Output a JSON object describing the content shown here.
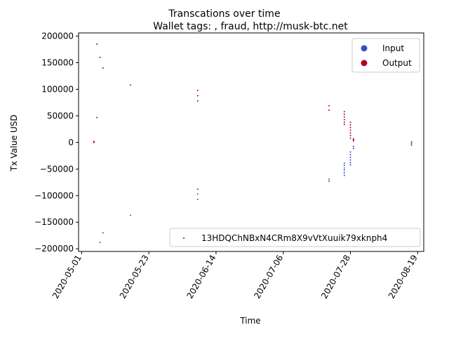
{
  "chart_data": {
    "type": "scatter",
    "title": "Transcations over time",
    "subtitle": "Wallet tags: , fraud, http://musk-btc.net",
    "xlabel": "Time",
    "ylabel": "Tx Value USD",
    "xlim": [
      "2020-04-30",
      "2020-08-21"
    ],
    "ylim": [
      -205000,
      206000
    ],
    "x_ticks": [
      "2020-05-01",
      "2020-05-23",
      "2020-06-14",
      "2020-07-06",
      "2020-07-28",
      "2020-08-19"
    ],
    "y_ticks": [
      {
        "value": 200000,
        "label": "200000"
      },
      {
        "value": 150000,
        "label": "150000"
      },
      {
        "value": 100000,
        "label": "100000"
      },
      {
        "value": 50000,
        "label": "50000"
      },
      {
        "value": 0,
        "label": "0"
      },
      {
        "value": -50000,
        "label": "−50000"
      },
      {
        "value": -100000,
        "label": "−100000"
      },
      {
        "value": -150000,
        "label": "−150000"
      },
      {
        "value": -200000,
        "label": "−200000"
      }
    ],
    "grid": false,
    "legend_top_right": [
      {
        "name": "Input",
        "color": "#3b4cc0"
      },
      {
        "name": "Output",
        "color": "#b40426"
      }
    ],
    "legend_bottom_right": {
      "name": "13HDQChNBxN4CRm8X9vVtXuuik79xknph4",
      "color": "#1f77b4"
    },
    "series": [
      {
        "name": "Output",
        "color": "#b40426",
        "points": [
          {
            "x": "2020-05-06",
            "y": 185000
          },
          {
            "x": "2020-05-07",
            "y": 160000
          },
          {
            "x": "2020-05-08",
            "y": 140000
          },
          {
            "x": "2020-05-06",
            "y": 47000
          },
          {
            "x": "2020-05-05",
            "y": 2000
          },
          {
            "x": "2020-05-05",
            "y": 1000
          },
          {
            "x": "2020-05-05",
            "y": 0
          },
          {
            "x": "2020-05-17",
            "y": 108000
          },
          {
            "x": "2020-06-08",
            "y": 98000
          },
          {
            "x": "2020-06-08",
            "y": 88000
          },
          {
            "x": "2020-06-08",
            "y": 78000
          },
          {
            "x": "2020-07-21",
            "y": 69000
          },
          {
            "x": "2020-07-21",
            "y": 61000
          },
          {
            "x": "2020-07-26",
            "y": 58000
          },
          {
            "x": "2020-07-26",
            "y": 53000
          },
          {
            "x": "2020-07-26",
            "y": 48000
          },
          {
            "x": "2020-07-26",
            "y": 43000
          },
          {
            "x": "2020-07-26",
            "y": 38000
          },
          {
            "x": "2020-07-26",
            "y": 34000
          },
          {
            "x": "2020-07-28",
            "y": 38000
          },
          {
            "x": "2020-07-28",
            "y": 33000
          },
          {
            "x": "2020-07-28",
            "y": 28000
          },
          {
            "x": "2020-07-28",
            "y": 23000
          },
          {
            "x": "2020-07-28",
            "y": 18000
          },
          {
            "x": "2020-07-28",
            "y": 13000
          },
          {
            "x": "2020-07-28",
            "y": 8000
          },
          {
            "x": "2020-07-29",
            "y": 7000
          },
          {
            "x": "2020-07-29",
            "y": 5000
          },
          {
            "x": "2020-07-29",
            "y": 3000
          },
          {
            "x": "2020-08-17",
            "y": 1000
          }
        ]
      },
      {
        "name": "Input",
        "color": "#3b4cc0",
        "points": [
          {
            "x": "2020-05-07",
            "y": -188000
          },
          {
            "x": "2020-05-08",
            "y": -170000
          },
          {
            "x": "2020-05-17",
            "y": -137000
          },
          {
            "x": "2020-06-08",
            "y": -88000
          },
          {
            "x": "2020-06-08",
            "y": -97000
          },
          {
            "x": "2020-06-08",
            "y": -107000
          },
          {
            "x": "2020-07-21",
            "y": -69000
          },
          {
            "x": "2020-07-21",
            "y": -73000
          },
          {
            "x": "2020-07-26",
            "y": -39000
          },
          {
            "x": "2020-07-26",
            "y": -43000
          },
          {
            "x": "2020-07-26",
            "y": -48000
          },
          {
            "x": "2020-07-26",
            "y": -52000
          },
          {
            "x": "2020-07-26",
            "y": -57000
          },
          {
            "x": "2020-07-26",
            "y": -62000
          },
          {
            "x": "2020-07-28",
            "y": -18000
          },
          {
            "x": "2020-07-28",
            "y": -23000
          },
          {
            "x": "2020-07-28",
            "y": -28000
          },
          {
            "x": "2020-07-28",
            "y": -33000
          },
          {
            "x": "2020-07-28",
            "y": -38000
          },
          {
            "x": "2020-07-28",
            "y": -42000
          },
          {
            "x": "2020-07-29",
            "y": -7000
          },
          {
            "x": "2020-07-29",
            "y": -11000
          },
          {
            "x": "2020-08-17",
            "y": -2000
          },
          {
            "x": "2020-08-17",
            "y": -5000
          }
        ]
      }
    ]
  }
}
